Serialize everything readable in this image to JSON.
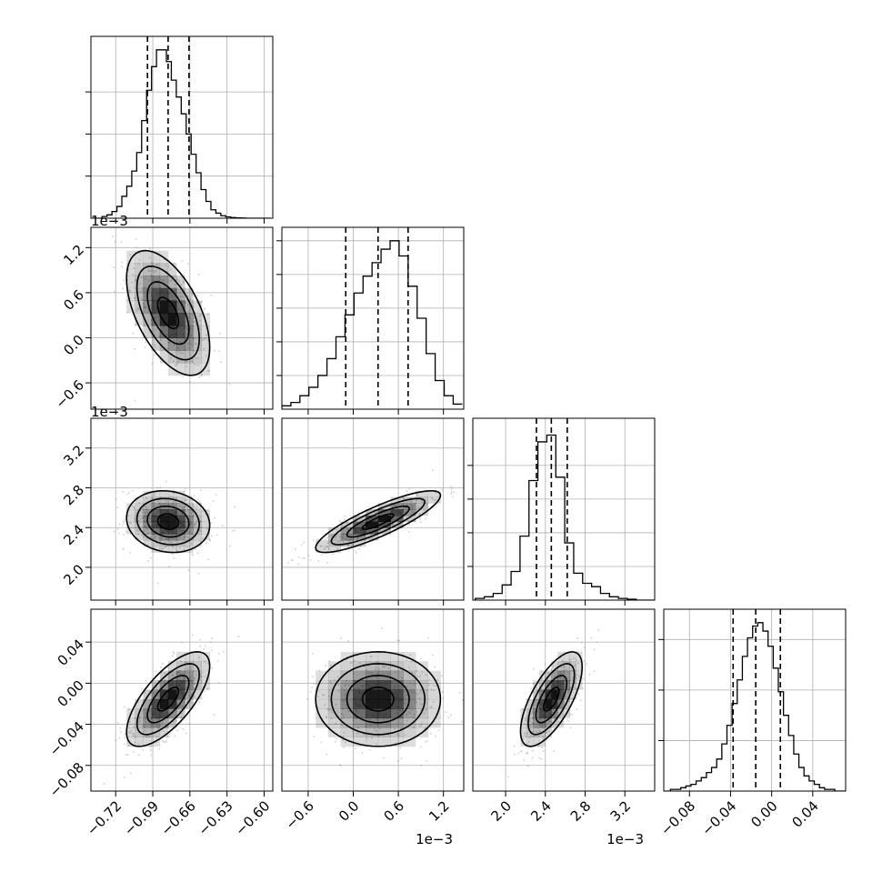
{
  "chart_data": {
    "type": "corner",
    "grid": true,
    "params": [
      {
        "range": [
          -0.74,
          -0.593
        ],
        "ticks": [
          -0.72,
          -0.69,
          -0.66,
          -0.63,
          -0.6
        ],
        "tick_labels": [
          "−0.72",
          "−0.69",
          "−0.66",
          "−0.63",
          "−0.60"
        ],
        "offset_text": "",
        "quantiles": [
          -0.6943,
          -0.6776,
          -0.6607
        ],
        "hist_x": [
          -0.737,
          -0.733,
          -0.729,
          -0.725,
          -0.721,
          -0.717,
          -0.713,
          -0.709,
          -0.705,
          -0.701,
          -0.697,
          -0.693,
          -0.689,
          -0.685,
          -0.681,
          -0.677,
          -0.673,
          -0.669,
          -0.665,
          -0.661,
          -0.657,
          -0.653,
          -0.649,
          -0.645,
          -0.641,
          -0.637,
          -0.633,
          -0.629,
          -0.625,
          -0.621,
          -0.617,
          -0.613,
          -0.609,
          -0.605,
          -0.601,
          -0.597
        ],
        "hist_y": [
          0,
          0,
          0.01,
          0.02,
          0.04,
          0.07,
          0.13,
          0.19,
          0.28,
          0.39,
          0.58,
          0.76,
          0.9,
          1.0,
          1.0,
          0.93,
          0.82,
          0.72,
          0.62,
          0.5,
          0.38,
          0.27,
          0.17,
          0.1,
          0.05,
          0.03,
          0.015,
          0.008,
          0.004,
          0.002,
          0.001,
          0,
          0,
          0,
          0,
          0
        ],
        "yticks": [
          0.25,
          0.5,
          0.75
        ]
      },
      {
        "range": [
          -0.95,
          1.47
        ],
        "ticks": [
          -0.6,
          0.0,
          0.6,
          1.2
        ],
        "tick_labels": [
          "−0.6",
          "0.0",
          "0.6",
          "1.2"
        ],
        "offset_text": "1e−3",
        "quantiles": [
          -0.1,
          0.33,
          0.73
        ],
        "hist_x": [
          -0.89,
          -0.77,
          -0.65,
          -0.53,
          -0.41,
          -0.29,
          -0.17,
          -0.05,
          0.07,
          0.19,
          0.31,
          0.43,
          0.55,
          0.67,
          0.79,
          0.91,
          1.03,
          1.15,
          1.27,
          1.39
        ],
        "hist_y": [
          0.02,
          0.04,
          0.08,
          0.13,
          0.2,
          0.3,
          0.43,
          0.56,
          0.69,
          0.79,
          0.87,
          0.95,
          1.0,
          0.91,
          0.73,
          0.54,
          0.33,
          0.17,
          0.08,
          0.03
        ],
        "yticks": [
          0.2,
          0.4,
          0.6,
          0.8,
          1.0
        ]
      },
      {
        "range": [
          1.67,
          3.5
        ],
        "ticks": [
          2.0,
          2.4,
          2.8,
          3.2
        ],
        "tick_labels": [
          "2.0",
          "2.4",
          "2.8",
          "3.2"
        ],
        "offset_text": "1e−3",
        "quantiles": [
          2.31,
          2.46,
          2.62
        ],
        "hist_x": [
          1.74,
          1.83,
          1.92,
          2.01,
          2.1,
          2.19,
          2.28,
          2.37,
          2.46,
          2.55,
          2.64,
          2.73,
          2.82,
          2.91,
          3.0,
          3.09,
          3.18,
          3.27,
          3.36,
          3.45
        ],
        "hist_y": [
          0.01,
          0.02,
          0.04,
          0.09,
          0.17,
          0.38,
          0.71,
          0.94,
          0.98,
          0.73,
          0.34,
          0.16,
          0.1,
          0.08,
          0.04,
          0.02,
          0.01,
          0.005,
          0,
          0
        ],
        "yticks": [
          0.2,
          0.4,
          0.6,
          0.8
        ]
      },
      {
        "range": [
          -0.105,
          0.072
        ],
        "ticks": [
          -0.08,
          -0.04,
          0.0,
          0.04
        ],
        "tick_labels": [
          "−0.08",
          "−0.04",
          "0.00",
          "0.04"
        ],
        "offset_text": "",
        "quantiles": [
          -0.0375,
          -0.0155,
          0.0085
        ],
        "hist_x": [
          -0.101,
          -0.096,
          -0.091,
          -0.086,
          -0.081,
          -0.076,
          -0.071,
          -0.066,
          -0.061,
          -0.056,
          -0.051,
          -0.046,
          -0.041,
          -0.036,
          -0.031,
          -0.026,
          -0.021,
          -0.016,
          -0.011,
          -0.006,
          -0.001,
          0.004,
          0.009,
          0.014,
          0.019,
          0.024,
          0.029,
          0.034,
          0.039,
          0.044,
          0.049,
          0.054,
          0.059,
          0.064,
          0.069
        ],
        "hist_y": [
          0.0,
          0.01,
          0.01,
          0.02,
          0.03,
          0.04,
          0.06,
          0.08,
          0.11,
          0.14,
          0.19,
          0.28,
          0.39,
          0.52,
          0.66,
          0.8,
          0.91,
          0.98,
          1.0,
          0.95,
          0.86,
          0.73,
          0.59,
          0.45,
          0.33,
          0.22,
          0.14,
          0.09,
          0.06,
          0.04,
          0.02,
          0.01,
          0.01,
          0.0,
          0.0
        ],
        "yticks": [
          0.3,
          0.6,
          0.9
        ]
      }
    ],
    "correlations": [
      [
        0,
        0,
        0,
        0
      ],
      [
        -0.55,
        0,
        0,
        0
      ],
      [
        -0.12,
        0.85,
        0,
        0
      ],
      [
        0.7,
        0.0,
        0.68,
        0
      ]
    ],
    "contour_levels": [
      0.118,
      0.393,
      0.675,
      0.865
    ],
    "scatter_points_per_panel": 380,
    "colors": {
      "line": "#000000",
      "grid": "#b0b0b0",
      "scatter": "#7a7a7a",
      "density": "#000000",
      "background": "#ffffff"
    }
  }
}
